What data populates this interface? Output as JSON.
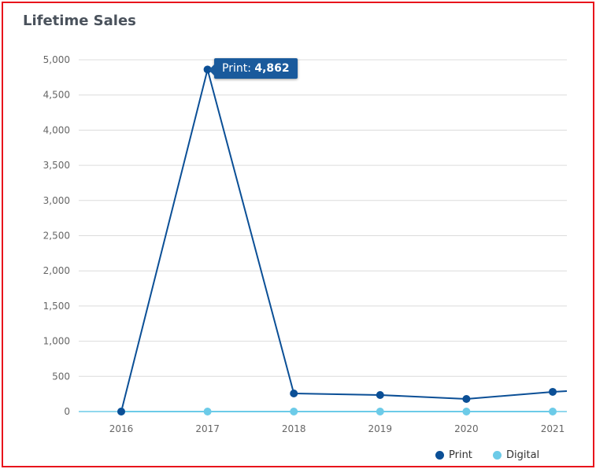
{
  "title": "Lifetime Sales",
  "tooltip": {
    "label": "Print:",
    "value": "4,862"
  },
  "chart_data": {
    "type": "line",
    "title": "Lifetime Sales",
    "x": [
      "2016",
      "2017",
      "2018",
      "2019",
      "2020",
      "2021"
    ],
    "ylim": [
      0,
      5000
    ],
    "yticks": [
      0,
      500,
      1000,
      1500,
      2000,
      2500,
      3000,
      3500,
      4000,
      4500,
      5000
    ],
    "ytick_labels": [
      "0",
      "500",
      "1,000",
      "1,500",
      "2,000",
      "2,500",
      "3,000",
      "3,500",
      "4,000",
      "4,500",
      "5,000"
    ],
    "grid": true,
    "legend_position": "bottom-right",
    "series": [
      {
        "name": "Print",
        "color": "#0b4f96",
        "values": [
          0,
          4862,
          257,
          235,
          179,
          280
        ]
      },
      {
        "name": "Digital",
        "color": "#6ccbe8",
        "values": [
          0,
          0,
          0,
          0,
          0,
          0
        ]
      }
    ]
  }
}
